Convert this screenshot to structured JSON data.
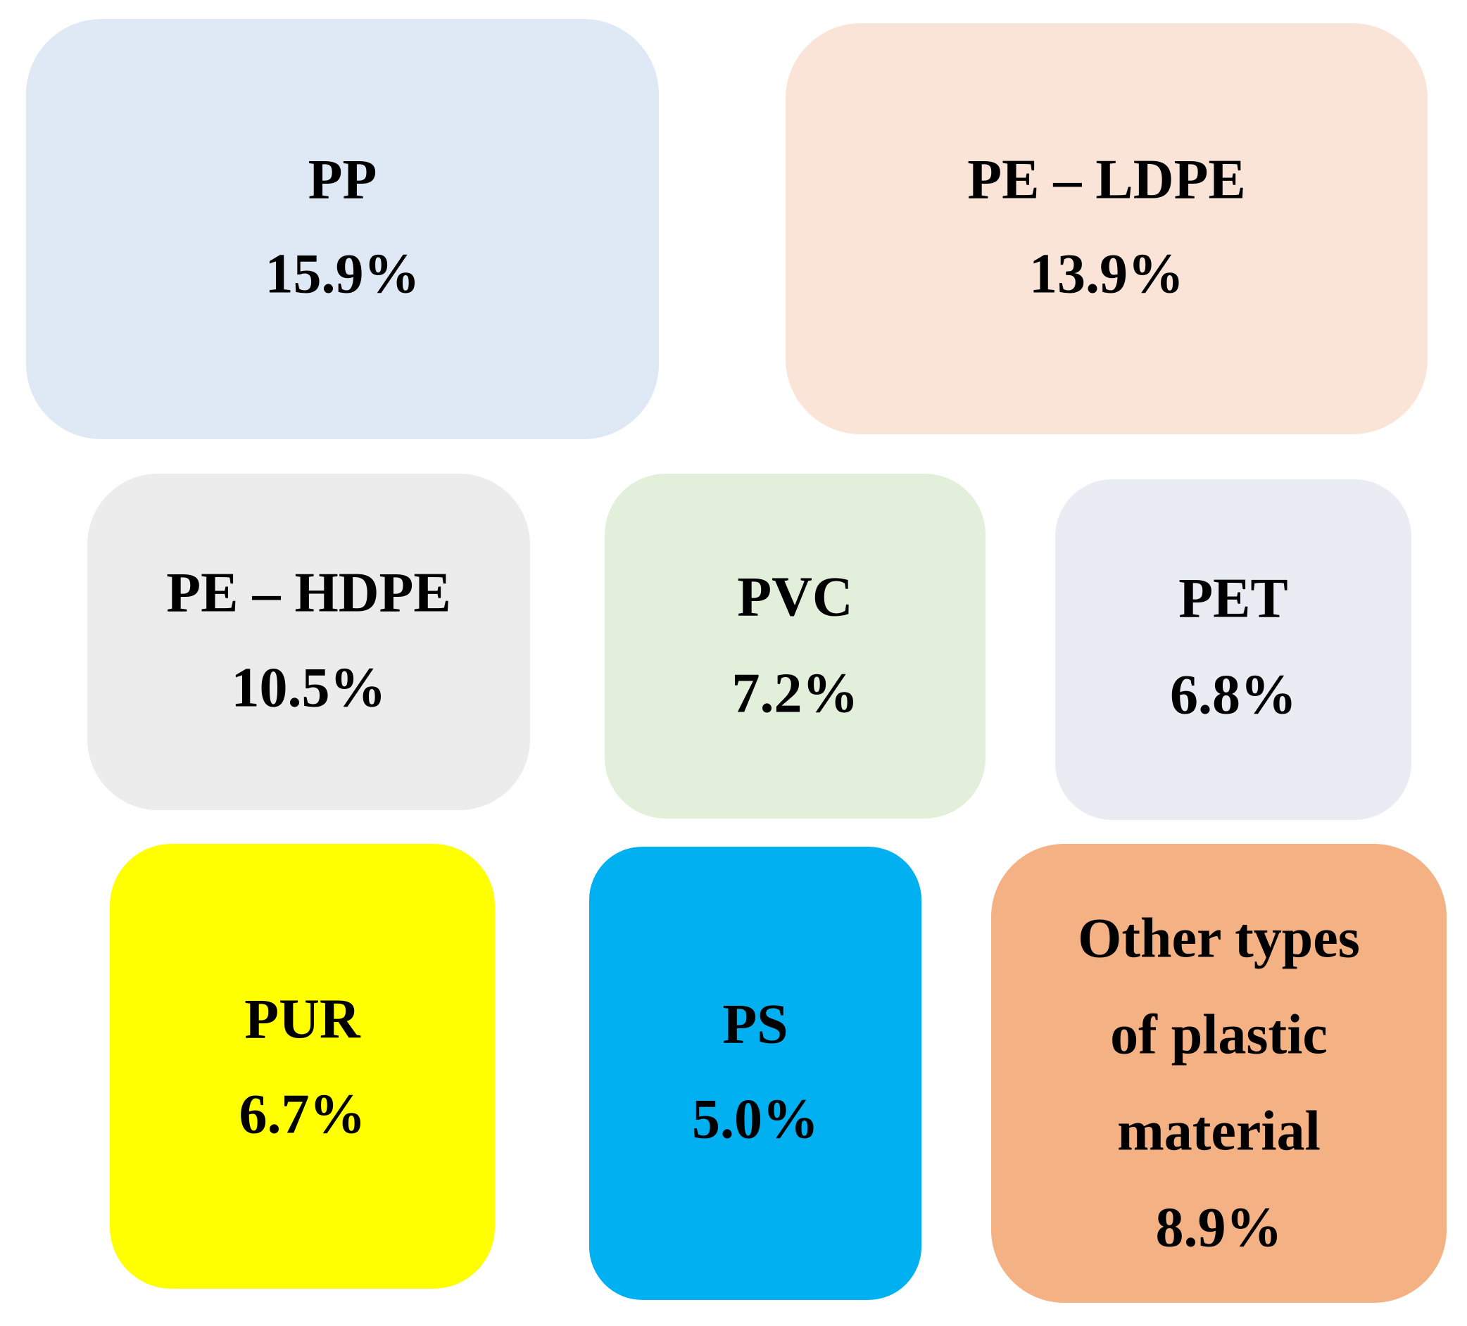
{
  "boxes": [
    {
      "label": [
        "PP"
      ],
      "value": "15.9%"
    },
    {
      "label": [
        "PE – LDPE"
      ],
      "value": "13.9%"
    },
    {
      "label": [
        "PE – HDPE"
      ],
      "value": "10.5%"
    },
    {
      "label": [
        "PVC"
      ],
      "value": "7.2%"
    },
    {
      "label": [
        "PET"
      ],
      "value": "6.8%"
    },
    {
      "label": [
        "PUR"
      ],
      "value": "6.7%"
    },
    {
      "label": [
        "PS"
      ],
      "value": "5.0%"
    },
    {
      "label": [
        "Other types",
        "of plastic",
        "material"
      ],
      "value": "8.9%"
    }
  ]
}
